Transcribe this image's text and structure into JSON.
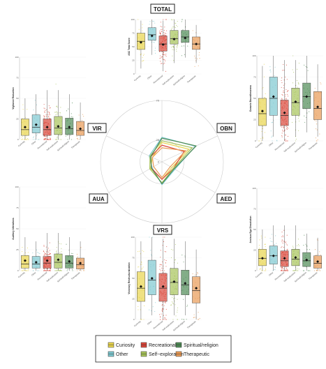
{
  "colors": {
    "Curiosity": "#e8d44d",
    "Other": "#7ec8d0",
    "Recreational": "#d9473a",
    "Self-exploration": "#a7c35a",
    "Spiritual/religion": "#4e8a55",
    "Therapeutic": "#e89a55"
  },
  "legend": {
    "entries": [
      "Curiosity",
      "Recreational",
      "Spiritual/religion",
      "Other",
      "Self−exploration",
      "Therapeutic"
    ]
  },
  "chart_data": [
    {
      "type": "radar",
      "axes": [
        "TOTAL",
        "OBN",
        "AED",
        "VRS",
        "AUA",
        "VIR"
      ],
      "ticks": [
        "0",
        "25",
        "70"
      ],
      "rlim": [
        0,
        70
      ],
      "series": [
        {
          "name": "Curiosity",
          "values": [
            22,
            34,
            13,
            20,
            15,
            12
          ]
        },
        {
          "name": "Other",
          "values": [
            28,
            42,
            17,
            26,
            13,
            16
          ]
        },
        {
          "name": "Recreational",
          "values": [
            19,
            28,
            15,
            20,
            14,
            14
          ]
        },
        {
          "name": "Self-exploration",
          "values": [
            24,
            38,
            15,
            24,
            16,
            15
          ]
        },
        {
          "name": "Spiritual/religion",
          "values": [
            27,
            43,
            16,
            25,
            14,
            14
          ]
        },
        {
          "name": "Therapeutic",
          "values": [
            16,
            30,
            11,
            18,
            11,
            12
          ]
        }
      ]
    },
    {
      "type": "box",
      "id": "total",
      "title": "TOTAL",
      "ylabel": "ASC Total Score",
      "ylim": [
        0,
        100
      ],
      "yticks": [
        "0",
        "25",
        "50",
        "75",
        "100"
      ],
      "categories": [
        "Curiosity",
        "Other",
        "Recreational",
        "Self-exploration",
        "Spiritual/religion",
        "Therapeutic"
      ],
      "boxes": [
        {
          "q1": 45,
          "median": 60,
          "q3": 75,
          "lo": 10,
          "hi": 98,
          "mean": 58
        },
        {
          "q1": 62,
          "median": 72,
          "q3": 85,
          "lo": 35,
          "hi": 100,
          "mean": 70
        },
        {
          "q1": 42,
          "median": 55,
          "q3": 70,
          "lo": 5,
          "hi": 98,
          "mean": 54
        },
        {
          "q1": 55,
          "median": 65,
          "q3": 80,
          "lo": 20,
          "hi": 100,
          "mean": 64
        },
        {
          "q1": 58,
          "median": 68,
          "q3": 80,
          "lo": 30,
          "hi": 100,
          "mean": 66
        },
        {
          "q1": 45,
          "median": 55,
          "q3": 68,
          "lo": 20,
          "hi": 90,
          "mean": 55
        }
      ]
    },
    {
      "type": "box",
      "id": "vir",
      "title": "VIR",
      "ylabel": "Vigilance Reduction",
      "ylim": [
        0,
        100
      ],
      "yticks": [
        "0",
        "25",
        "50",
        "75",
        "100"
      ],
      "categories": [
        "Curiosity",
        "Other",
        "Recreational",
        "Self-exploration",
        "Spiritual/religion",
        "Therapeutic"
      ],
      "boxes": [
        {
          "q1": 5,
          "median": 12,
          "q3": 25,
          "lo": 0,
          "hi": 50,
          "mean": 15
        },
        {
          "q1": 8,
          "median": 15,
          "q3": 30,
          "lo": 0,
          "hi": 55,
          "mean": 18
        },
        {
          "q1": 5,
          "median": 12,
          "q3": 25,
          "lo": 0,
          "hi": 60,
          "mean": 15
        },
        {
          "q1": 6,
          "median": 14,
          "q3": 28,
          "lo": 0,
          "hi": 60,
          "mean": 16
        },
        {
          "q1": 6,
          "median": 13,
          "q3": 26,
          "lo": 0,
          "hi": 55,
          "mean": 15
        },
        {
          "q1": 5,
          "median": 11,
          "q3": 22,
          "lo": 0,
          "hi": 45,
          "mean": 13
        }
      ]
    },
    {
      "type": "box",
      "id": "obn",
      "title": "OBN",
      "ylabel": "Oceanic Boundlessness",
      "ylim": [
        0,
        100
      ],
      "yticks": [
        "0",
        "25",
        "50",
        "75",
        "100"
      ],
      "categories": [
        "Curiosity",
        "Other",
        "Recreational",
        "Self-exploration",
        "Spiritual/religion",
        "Therapeutic"
      ],
      "boxes": [
        {
          "q1": 18,
          "median": 32,
          "q3": 50,
          "lo": 0,
          "hi": 88,
          "mean": 35
        },
        {
          "q1": 30,
          "median": 50,
          "q3": 75,
          "lo": 5,
          "hi": 100,
          "mean": 52
        },
        {
          "q1": 18,
          "median": 30,
          "q3": 48,
          "lo": 0,
          "hi": 95,
          "mean": 33
        },
        {
          "q1": 30,
          "median": 45,
          "q3": 62,
          "lo": 5,
          "hi": 95,
          "mean": 46
        },
        {
          "q1": 38,
          "median": 52,
          "q3": 68,
          "lo": 10,
          "hi": 100,
          "mean": 52
        },
        {
          "q1": 25,
          "median": 38,
          "q3": 58,
          "lo": 5,
          "hi": 90,
          "mean": 40
        }
      ]
    },
    {
      "type": "box",
      "id": "aua",
      "title": "AUA",
      "ylabel": "Auditory Alterations",
      "ylim": [
        0,
        100
      ],
      "yticks": [
        "0",
        "25",
        "50",
        "75",
        "100"
      ],
      "categories": [
        "Curiosity",
        "Other",
        "Recreational",
        "Self-exploration",
        "Spiritual/religion",
        "Therapeutic"
      ],
      "boxes": [
        {
          "q1": 3,
          "median": 8,
          "q3": 18,
          "lo": 0,
          "hi": 40,
          "mean": 12
        },
        {
          "q1": 3,
          "median": 8,
          "q3": 17,
          "lo": 0,
          "hi": 35,
          "mean": 10
        },
        {
          "q1": 3,
          "median": 9,
          "q3": 17,
          "lo": 0,
          "hi": 45,
          "mean": 12
        },
        {
          "q1": 3,
          "median": 10,
          "q3": 20,
          "lo": 0,
          "hi": 45,
          "mean": 13
        },
        {
          "q1": 3,
          "median": 9,
          "q3": 18,
          "lo": 0,
          "hi": 40,
          "mean": 11
        },
        {
          "q1": 2,
          "median": 7,
          "q3": 15,
          "lo": 0,
          "hi": 35,
          "mean": 9
        }
      ]
    },
    {
      "type": "box",
      "id": "aed",
      "title": "AED",
      "ylabel": "Anxious Ego Dissolution",
      "ylim": [
        0,
        100
      ],
      "yticks": [
        "0",
        "25",
        "50",
        "75",
        "100"
      ],
      "categories": [
        "Curiosity",
        "Other",
        "Recreational",
        "Self-exploration",
        "Spiritual/religion",
        "Therapeutic"
      ],
      "boxes": [
        {
          "q1": 6,
          "median": 15,
          "q3": 26,
          "lo": 0,
          "hi": 50,
          "mean": 15
        },
        {
          "q1": 8,
          "median": 18,
          "q3": 30,
          "lo": 0,
          "hi": 55,
          "mean": 18
        },
        {
          "q1": 5,
          "median": 12,
          "q3": 24,
          "lo": 0,
          "hi": 55,
          "mean": 15
        },
        {
          "q1": 6,
          "median": 14,
          "q3": 26,
          "lo": 0,
          "hi": 55,
          "mean": 16
        },
        {
          "q1": 5,
          "median": 12,
          "q3": 22,
          "lo": 0,
          "hi": 45,
          "mean": 13
        },
        {
          "q1": 3,
          "median": 9,
          "q3": 18,
          "lo": 0,
          "hi": 40,
          "mean": 11
        }
      ]
    },
    {
      "type": "box",
      "id": "vrs",
      "title": "VRS",
      "ylabel": "Visionary Restructuralization",
      "ylim": [
        0,
        100
      ],
      "yticks": [
        "0",
        "25",
        "50",
        "75",
        "100"
      ],
      "categories": [
        "Curiosity",
        "Other",
        "Recreational",
        "Self-exploration",
        "Spiritual/religion",
        "Therapeutic"
      ],
      "boxes": [
        {
          "q1": 22,
          "median": 38,
          "q3": 58,
          "lo": 0,
          "hi": 95,
          "mean": 40
        },
        {
          "q1": 30,
          "median": 48,
          "q3": 72,
          "lo": 5,
          "hi": 100,
          "mean": 50
        },
        {
          "q1": 22,
          "median": 38,
          "q3": 56,
          "lo": 0,
          "hi": 98,
          "mean": 40
        },
        {
          "q1": 30,
          "median": 45,
          "q3": 62,
          "lo": 5,
          "hi": 98,
          "mean": 46
        },
        {
          "q1": 30,
          "median": 42,
          "q3": 60,
          "lo": 5,
          "hi": 95,
          "mean": 44
        },
        {
          "q1": 20,
          "median": 35,
          "q3": 52,
          "lo": 0,
          "hi": 85,
          "mean": 38
        }
      ]
    }
  ]
}
